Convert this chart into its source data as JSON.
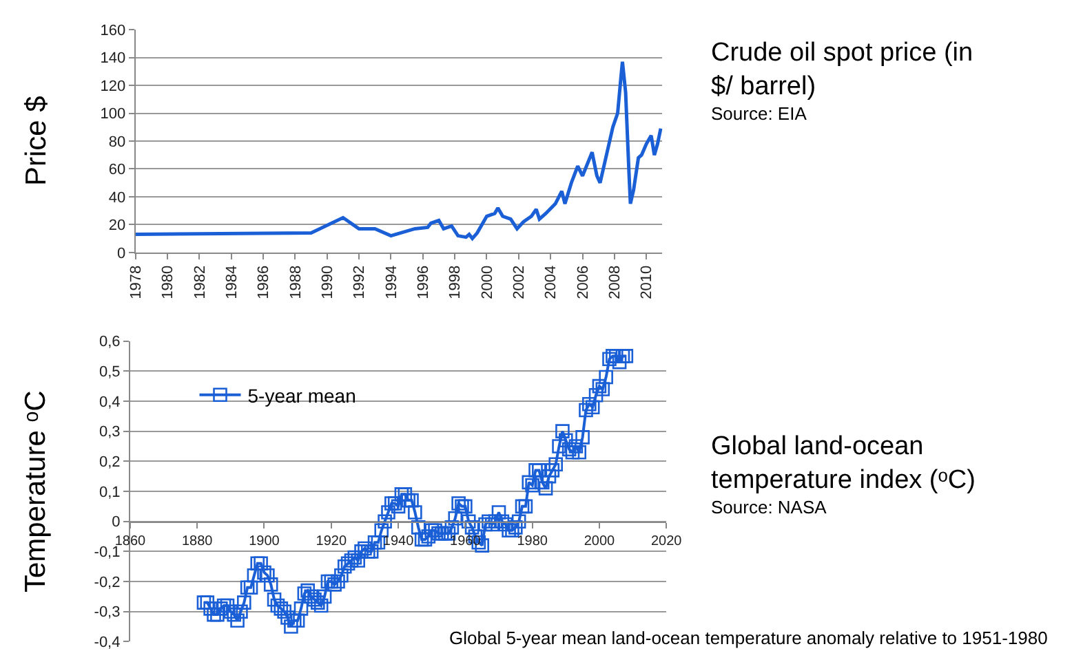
{
  "chart_data": [
    {
      "type": "line",
      "ylabel": "Price $",
      "x": [
        1978,
        1989,
        1991,
        1992,
        1993,
        1994,
        1995.5,
        1996.3,
        1996.5,
        1997,
        1997.3,
        1997.8,
        1998.2,
        1998.7,
        1998.9,
        1999.1,
        1999.4,
        2000,
        2000.5,
        2000.7,
        2001,
        2001.5,
        2001.9,
        2002.3,
        2002.8,
        2003.1,
        2003.3,
        2003.7,
        2004.3,
        2004.7,
        2004.9,
        2005.3,
        2005.7,
        2006,
        2006.6,
        2006.9,
        2007.1,
        2007.5,
        2007.9,
        2008.2,
        2008.4,
        2008.5,
        2008.7,
        2008.9,
        2009,
        2009.2,
        2009.5,
        2009.7,
        2010,
        2010.3,
        2010.5,
        2010.7,
        2010.9
      ],
      "series": [
        {
          "color": "#1a5fd6",
          "values": [
            13,
            14,
            25,
            17,
            17,
            12,
            17,
            18,
            21,
            23,
            17,
            19,
            12,
            11,
            13,
            10,
            14,
            26,
            28,
            32,
            26,
            24,
            17,
            22,
            26,
            31,
            24,
            28,
            35,
            44,
            35,
            50,
            62,
            55,
            72,
            55,
            50,
            70,
            90,
            100,
            125,
            137,
            115,
            60,
            35,
            45,
            68,
            70,
            78,
            84,
            70,
            78,
            89
          ]
        }
      ],
      "xlim": [
        1978,
        2011
      ],
      "xticks": [
        1978,
        1980,
        1982,
        1984,
        1986,
        1988,
        1990,
        1992,
        1994,
        1996,
        1998,
        2000,
        2002,
        2004,
        2006,
        2008,
        2010
      ],
      "ylim": [
        0,
        160
      ],
      "yticks": [
        0,
        20,
        40,
        60,
        80,
        100,
        120,
        140,
        160
      ],
      "grid": "y",
      "marker": "none",
      "line_style": "solid",
      "legend": false
    },
    {
      "type": "other",
      "title": "Crude oil spot price (in $/ barrel)",
      "annotations": [
        "Source: EIA"
      ]
    },
    {
      "type": "line",
      "ylabel": "Temperature ᵒC",
      "annotations": [
        "Global 5-year mean land-ocean temperature anomaly relative to 1951-1980"
      ],
      "x": [
        1882,
        1883,
        1884,
        1885,
        1886,
        1887,
        1888,
        1889,
        1890,
        1891,
        1892,
        1893,
        1894,
        1895,
        1896,
        1897,
        1898,
        1899,
        1900,
        1901,
        1902,
        1903,
        1904,
        1905,
        1906,
        1907,
        1908,
        1909,
        1910,
        1911,
        1912,
        1913,
        1914,
        1915,
        1916,
        1917,
        1918,
        1919,
        1920,
        1921,
        1922,
        1923,
        1924,
        1925,
        1926,
        1927,
        1928,
        1929,
        1930,
        1931,
        1932,
        1933,
        1934,
        1935,
        1936,
        1937,
        1938,
        1939,
        1940,
        1941,
        1942,
        1943,
        1944,
        1945,
        1946,
        1947,
        1948,
        1949,
        1950,
        1951,
        1952,
        1953,
        1954,
        1955,
        1956,
        1957,
        1958,
        1959,
        1960,
        1961,
        1962,
        1963,
        1964,
        1965,
        1966,
        1967,
        1968,
        1969,
        1970,
        1971,
        1972,
        1973,
        1974,
        1975,
        1976,
        1977,
        1978,
        1979,
        1980,
        1981,
        1982,
        1983,
        1984,
        1985,
        1986,
        1987,
        1988,
        1989,
        1990,
        1991,
        1992,
        1993,
        1994,
        1995,
        1996,
        1997,
        1998,
        1999,
        2000,
        2001,
        2002,
        2003,
        2004,
        2005,
        2006,
        2007,
        2008
      ],
      "series": [
        {
          "name": "5-year mean",
          "color": "#1a5fd6",
          "values": [
            -0.27,
            -0.27,
            -0.29,
            -0.31,
            -0.31,
            -0.29,
            -0.28,
            -0.28,
            -0.3,
            -0.31,
            -0.33,
            -0.3,
            -0.27,
            -0.22,
            -0.22,
            -0.18,
            -0.14,
            -0.14,
            -0.17,
            -0.18,
            -0.21,
            -0.26,
            -0.28,
            -0.29,
            -0.3,
            -0.32,
            -0.35,
            -0.33,
            -0.33,
            -0.29,
            -0.24,
            -0.23,
            -0.25,
            -0.26,
            -0.27,
            -0.28,
            -0.25,
            -0.2,
            -0.2,
            -0.21,
            -0.2,
            -0.18,
            -0.15,
            -0.14,
            -0.13,
            -0.12,
            -0.13,
            -0.1,
            -0.09,
            -0.1,
            -0.1,
            -0.07,
            -0.07,
            -0.03,
            0.0,
            0.03,
            0.06,
            0.06,
            0.05,
            0.09,
            0.09,
            0.07,
            0.07,
            0.03,
            -0.02,
            -0.06,
            -0.06,
            -0.05,
            -0.03,
            -0.03,
            -0.04,
            -0.04,
            -0.04,
            -0.04,
            -0.02,
            0.01,
            0.06,
            0.05,
            0.05,
            0.0,
            -0.02,
            -0.05,
            -0.07,
            -0.08,
            -0.01,
            0.0,
            -0.01,
            0.0,
            0.03,
            0.0,
            -0.01,
            -0.03,
            -0.03,
            -0.02,
            0.0,
            0.05,
            0.05,
            0.13,
            0.12,
            0.17,
            0.17,
            0.13,
            0.11,
            0.15,
            0.17,
            0.19,
            0.25,
            0.3,
            0.27,
            0.24,
            0.23,
            0.25,
            0.23,
            0.28,
            0.37,
            0.39,
            0.38,
            0.42,
            0.45,
            0.44,
            0.48,
            0.54,
            0.55,
            0.55,
            0.53,
            0.55,
            0.55
          ]
        }
      ],
      "xlim": [
        1860,
        2020
      ],
      "xticks": [
        1860,
        1880,
        1900,
        1920,
        1940,
        1960,
        1980,
        2000,
        2020
      ],
      "ylim": [
        -0.4,
        0.6
      ],
      "yticks": [
        {
          "value": -0.4,
          "label": "-0,4"
        },
        {
          "value": -0.3,
          "label": "-0,3"
        },
        {
          "value": -0.2,
          "label": "-0,2"
        },
        {
          "value": -0.1,
          "label": "-0,1"
        },
        {
          "value": 0,
          "label": "0"
        },
        {
          "value": 0.1,
          "label": "0,1"
        },
        {
          "value": 0.2,
          "label": "0,2"
        },
        {
          "value": 0.3,
          "label": "0,3"
        },
        {
          "value": 0.4,
          "label": "0,4"
        },
        {
          "value": 0.5,
          "label": "0,5"
        },
        {
          "value": 0.6,
          "label": "0,6"
        }
      ],
      "grid": "y",
      "marker": "square",
      "line_style": "solid",
      "legend": "top left"
    },
    {
      "type": "other",
      "title": "Global land-ocean temperature index (ᵒC)",
      "annotations": [
        "Source: NASA"
      ]
    }
  ]
}
